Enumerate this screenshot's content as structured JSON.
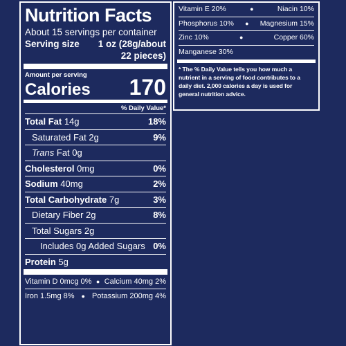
{
  "label": {
    "title": "Nutrition Facts",
    "servings_per_container": "About 15 servings per container",
    "serving_size_label": "Serving size",
    "serving_size_value_1": "1 oz (28g/about",
    "serving_size_value_2": "22 pieces)",
    "amount_per_serving": "Amount per serving",
    "calories_label": "Calories",
    "calories_value": "170",
    "daily_value_header": "% Daily Value*"
  },
  "nutrients": {
    "total_fat": {
      "label": "Total Fat",
      "amount": "14g",
      "dv": "18%"
    },
    "saturated_fat": {
      "label": "Saturated Fat 2g",
      "dv": "9%"
    },
    "trans_fat": {
      "italic": "Trans",
      "label": "Fat 0g"
    },
    "cholesterol": {
      "label": "Cholesterol",
      "amount": "0mg",
      "dv": "0%"
    },
    "sodium": {
      "label": "Sodium",
      "amount": "40mg",
      "dv": "2%"
    },
    "total_carbohydrate": {
      "label": "Total Carbohydrate",
      "amount": "7g",
      "dv": "3%"
    },
    "dietary_fiber": {
      "label": "Dietary Fiber 2g",
      "dv": "8%"
    },
    "total_sugars": {
      "label": "Total Sugars 2g"
    },
    "added_sugars": {
      "label": "Includes 0g Added Sugars",
      "dv": "0%"
    },
    "protein": {
      "label": "Protein",
      "amount": "5g"
    }
  },
  "vitamins_left": {
    "row1": {
      "a": "Vitamin D 0mcg 0%",
      "b": "Calcium 40mg 2%"
    },
    "row2": {
      "a": "Iron 1.5mg 8%",
      "b": "Potassium 200mg 4%"
    }
  },
  "vitamins_right": {
    "row1": {
      "a": "Vitamin E 20%",
      "b": "Niacin 10%"
    },
    "row2": {
      "a": "Phosphorus 10%",
      "b": "Magnesium 15%"
    },
    "row3": {
      "a": "Zinc 10%",
      "b": "Copper 60%"
    },
    "row4": "Manganese 30%"
  },
  "footnote": "* The % Daily Value tells you how much a nutrient in a serving of food contributes to a daily diet. 2,000 calories a day is used for general nutrition advice.",
  "colors": {
    "background": "#1d2a5e",
    "text": "#ffffff"
  }
}
